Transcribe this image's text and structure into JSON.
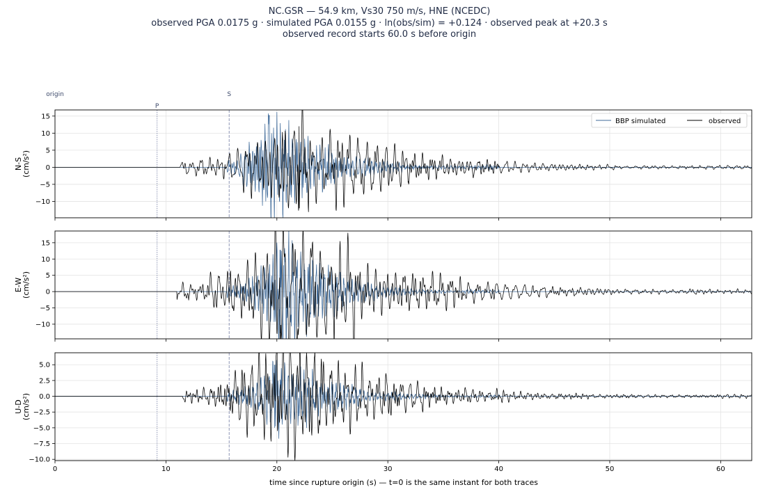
{
  "title": {
    "line1": "NC.GSR  —  54.9 km, Vs30 750 m/s, HNE (NCEDC)",
    "line2": "observed PGA 0.0175 g   ·   simulated PGA 0.0155 g   ·   ln(obs/sim) = +0.124   ·   observed peak at +20.3 s",
    "line3": "observed record starts 60.0 s before origin"
  },
  "markers": {
    "origin_label": "origin",
    "p_label": "P",
    "p_time": 9.2,
    "s_label": "S",
    "s_time": 15.7
  },
  "colors": {
    "simulated": "#3f6a99",
    "observed": "#000000",
    "p_line": "#8e95b5",
    "s_line": "#8e95b5"
  },
  "chart_data": {
    "type": "line",
    "xlabel": "time since rupture origin (s)   —   t=0 is the same instant for both traces",
    "xlim": [
      0,
      62.8
    ],
    "xticks": [
      0,
      10,
      20,
      30,
      40,
      50,
      60
    ],
    "grid": true,
    "legend": {
      "placement": "top-right",
      "entries": [
        "BBP simulated",
        "observed"
      ]
    },
    "panels": [
      {
        "name": "N-S",
        "ylabel": "N-S\n(cm/s²)",
        "ylim": [
          -14.8,
          16.8
        ],
        "yticks": [
          -10,
          -5,
          0,
          5,
          10,
          15
        ],
        "ytick_labels": [
          "−10",
          "−5",
          "0",
          "5",
          "10",
          "15"
        ],
        "show_legend": true,
        "series": [
          {
            "name": "BBP simulated",
            "onset": 15.5,
            "peak_t": 19.3,
            "amp": 15.2,
            "decay": 4.2,
            "end": 40,
            "freq": 2.8
          },
          {
            "name": "observed",
            "onset": 11.3,
            "peak_t": 22.0,
            "amp": 12.0,
            "decay": 8.5,
            "end": 62.8,
            "freq": 1.2
          }
        ]
      },
      {
        "name": "E-W",
        "ylabel": "E-W\n(cm/s²)",
        "ylim": [
          -14.5,
          18.6
        ],
        "yticks": [
          -10,
          -5,
          0,
          5,
          10,
          15
        ],
        "ytick_labels": [
          "−10",
          "−5",
          "0",
          "5",
          "10",
          "15"
        ],
        "show_legend": false,
        "series": [
          {
            "name": "BBP simulated",
            "onset": 15.5,
            "peak_t": 20.3,
            "amp": 12.8,
            "decay": 4.0,
            "end": 40,
            "freq": 2.8
          },
          {
            "name": "observed",
            "onset": 11.0,
            "peak_t": 20.3,
            "amp": 17.2,
            "decay": 9.0,
            "end": 62.8,
            "freq": 1.2
          }
        ]
      },
      {
        "name": "U-D",
        "ylabel": "U-D\n(cm/s²)",
        "ylim": [
          -10.2,
          6.9
        ],
        "yticks": [
          -10,
          -7.5,
          -5,
          -2.5,
          0,
          2.5,
          5
        ],
        "ytick_labels": [
          "−10.0",
          "−7.5",
          "−5.0",
          "−2.5",
          "0.0",
          "2.5",
          "5.0"
        ],
        "show_legend": false,
        "series": [
          {
            "name": "BBP simulated",
            "onset": 15.5,
            "peak_t": 19.8,
            "amp": 5.0,
            "decay": 4.5,
            "end": 40,
            "freq": 2.8
          },
          {
            "name": "observed",
            "onset": 11.5,
            "peak_t": 20.0,
            "amp": 7.0,
            "decay": 8.5,
            "end": 62.8,
            "freq": 1.4
          }
        ]
      }
    ]
  }
}
